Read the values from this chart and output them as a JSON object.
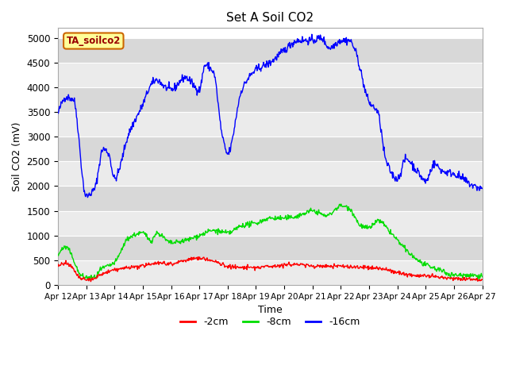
{
  "title": "Set A Soil CO2",
  "ylabel": "Soil CO2 (mV)",
  "xlabel": "Time",
  "ylim": [
    0,
    5200
  ],
  "xlim": [
    0,
    15
  ],
  "xtick_labels": [
    "Apr 12",
    "Apr 13",
    "Apr 14",
    "Apr 15",
    "Apr 16",
    "Apr 17",
    "Apr 18",
    "Apr 19",
    "Apr 20",
    "Apr 21",
    "Apr 22",
    "Apr 23",
    "Apr 24",
    "Apr 25",
    "Apr 26",
    "Apr 27"
  ],
  "ytick_values": [
    0,
    500,
    1000,
    1500,
    2000,
    2500,
    3000,
    3500,
    4000,
    4500,
    5000
  ],
  "line_red_color": "#ff0000",
  "line_green_color": "#00dd00",
  "line_blue_color": "#0000ff",
  "legend_label_red": "-2cm",
  "legend_label_green": "-8cm",
  "legend_label_blue": "-16cm",
  "inset_label": "TA_soilco2",
  "inset_bg": "#ffff99",
  "inset_border": "#cc6600",
  "inset_text_color": "#990000",
  "stripe_light": "#ebebeb",
  "stripe_dark": "#d8d8d8",
  "blue_keypoints_x": [
    0,
    0.3,
    0.55,
    1.0,
    1.3,
    1.6,
    1.8,
    2.0,
    2.5,
    3.0,
    3.3,
    3.5,
    3.8,
    4.0,
    4.5,
    5.0,
    5.2,
    5.5,
    5.8,
    6.0,
    6.5,
    7.0,
    7.5,
    8.0,
    8.5,
    9.0,
    9.3,
    9.6,
    10.0,
    10.3,
    10.5,
    11.0,
    11.3,
    11.6,
    12.0,
    12.3,
    12.7,
    13.0,
    13.3,
    13.6,
    14.0,
    14.3,
    14.7,
    15.0
  ],
  "blue_keypoints_y": [
    3450,
    3800,
    3750,
    1800,
    1950,
    2750,
    2650,
    2150,
    3050,
    3650,
    4050,
    4150,
    4000,
    3950,
    4200,
    3950,
    4450,
    4300,
    3050,
    2650,
    3950,
    4350,
    4500,
    4750,
    4950,
    4950,
    5000,
    4800,
    4950,
    4950,
    4750,
    3700,
    3500,
    2500,
    2150,
    2550,
    2300,
    2100,
    2450,
    2300,
    2250,
    2150,
    2000,
    1950
  ],
  "green_keypoints_x": [
    0,
    0.3,
    0.5,
    0.8,
    1.0,
    1.3,
    1.5,
    2.0,
    2.5,
    3.0,
    3.3,
    3.5,
    4.0,
    4.5,
    5.0,
    5.5,
    6.0,
    6.5,
    7.0,
    7.5,
    8.0,
    8.5,
    9.0,
    9.5,
    10.0,
    10.3,
    10.7,
    11.0,
    11.3,
    11.7,
    12.0,
    12.5,
    13.0,
    13.5,
    14.0,
    14.5,
    15.0
  ],
  "green_keypoints_y": [
    580,
    760,
    580,
    200,
    150,
    150,
    300,
    450,
    950,
    1050,
    900,
    1050,
    850,
    900,
    1000,
    1100,
    1050,
    1200,
    1250,
    1350,
    1350,
    1400,
    1500,
    1400,
    1600,
    1550,
    1200,
    1150,
    1300,
    1100,
    900,
    600,
    400,
    300,
    200,
    200,
    180
  ],
  "red_keypoints_x": [
    0,
    0.3,
    0.5,
    0.8,
    1.0,
    1.3,
    1.5,
    2.0,
    2.5,
    3.0,
    3.5,
    4.0,
    4.5,
    5.0,
    5.5,
    6.0,
    6.5,
    7.0,
    7.5,
    8.0,
    8.5,
    9.0,
    9.5,
    10.0,
    10.5,
    11.0,
    11.5,
    12.0,
    12.5,
    13.0,
    13.5,
    14.0,
    14.5,
    15.0
  ],
  "red_keypoints_y": [
    380,
    430,
    350,
    130,
    100,
    130,
    200,
    300,
    350,
    380,
    450,
    430,
    500,
    540,
    480,
    380,
    350,
    350,
    380,
    400,
    420,
    380,
    380,
    380,
    360,
    350,
    320,
    250,
    200,
    180,
    150,
    130,
    120,
    110
  ]
}
